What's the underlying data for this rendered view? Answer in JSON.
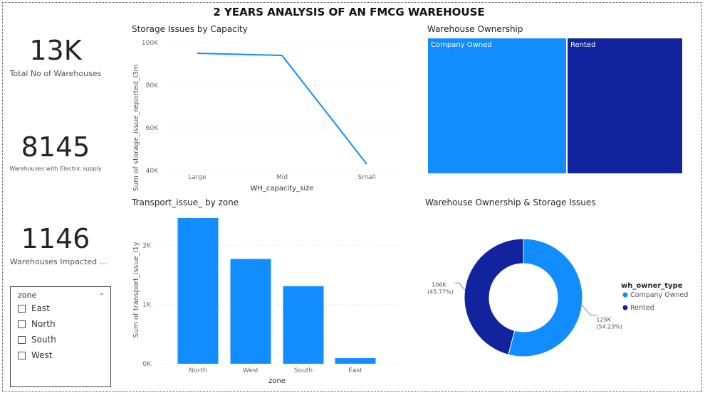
{
  "title": "2 YEARS ANALYSIS OF AN FMCG WAREHOUSE",
  "kpis": [
    {
      "value": "13K",
      "label": "Total No of Warehouses"
    },
    {
      "value": "8145",
      "label": "Warehouses with Electric supply"
    },
    {
      "value": "1146",
      "label": "Warehouses Impacted ..."
    }
  ],
  "slicer": {
    "title": "zone",
    "options": [
      "East",
      "North",
      "South",
      "West"
    ]
  },
  "colors": {
    "primary": "#118DFF",
    "dark": "#12239E"
  },
  "chart_data": [
    {
      "id": "storage",
      "type": "line",
      "title": "Storage Issues by Capacity",
      "xlabel": "WH_capacity_size",
      "ylabel": "Sum of storage_issue_reported_l3m",
      "categories": [
        "Large",
        "Mid",
        "Small"
      ],
      "values": [
        95000,
        94000,
        43000
      ],
      "yticks": [
        40000,
        60000,
        80000,
        100000
      ],
      "ytick_labels": [
        "40K",
        "60K",
        "80K",
        "100K"
      ],
      "ylim": [
        40000,
        100000
      ],
      "grid": true
    },
    {
      "id": "ownership",
      "type": "treemap",
      "title": "Warehouse Ownership",
      "labels": [
        "Company Owned",
        "Rented"
      ],
      "values": [
        0.545,
        0.455
      ]
    },
    {
      "id": "transport",
      "type": "bar",
      "title": "Transport_issue_ by zone",
      "xlabel": "zone",
      "ylabel": "Sum of transport_issue_l1y",
      "categories": [
        "North",
        "West",
        "South",
        "East"
      ],
      "values": [
        2460,
        1770,
        1310,
        95
      ],
      "yticks": [
        0,
        1000,
        2000
      ],
      "ytick_labels": [
        "0K",
        "1K",
        "2K"
      ],
      "ylim": [
        0,
        2520
      ],
      "grid": true
    },
    {
      "id": "donut",
      "type": "pie",
      "title": "Warehouse Ownership & Storage Issues",
      "legend_title": "wh_owner_type",
      "legend_position": "right",
      "labels": [
        "Company Owned",
        "Rented"
      ],
      "values": [
        125000,
        106000
      ],
      "value_labels": [
        "125K",
        "106K"
      ],
      "percent_labels": [
        "(54.23%)",
        "(45.77%)"
      ]
    }
  ]
}
